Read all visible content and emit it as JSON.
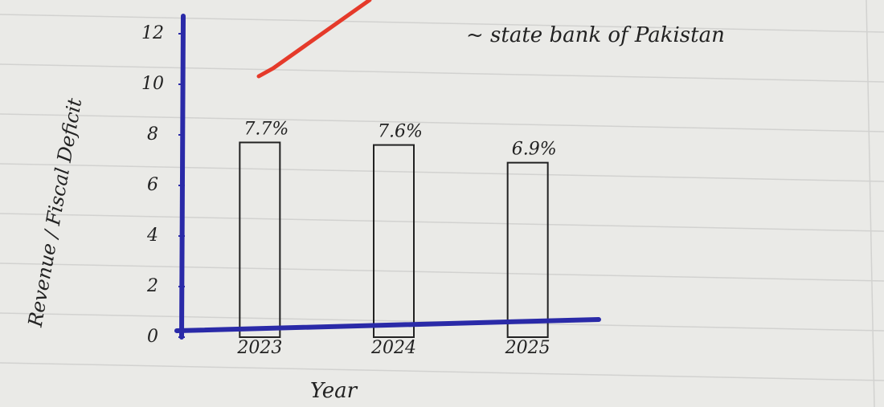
{
  "chart_data": {
    "type": "bar",
    "annotation": "~ state bank of Pakistan",
    "y_label": "Revenue / Fiscal Deficit",
    "x_label": "Year",
    "categories": [
      "2023",
      "2024",
      "2025"
    ],
    "values": [
      7.7,
      7.6,
      6.9
    ],
    "value_labels": [
      "7.7%",
      "7.6%",
      "6.9%"
    ],
    "color": "#222222",
    "axis_color": "#2a2aa8",
    "ylim": [
      0,
      12
    ],
    "yticks": [
      0,
      2,
      4,
      6,
      8,
      10,
      12
    ],
    "grid": false
  }
}
